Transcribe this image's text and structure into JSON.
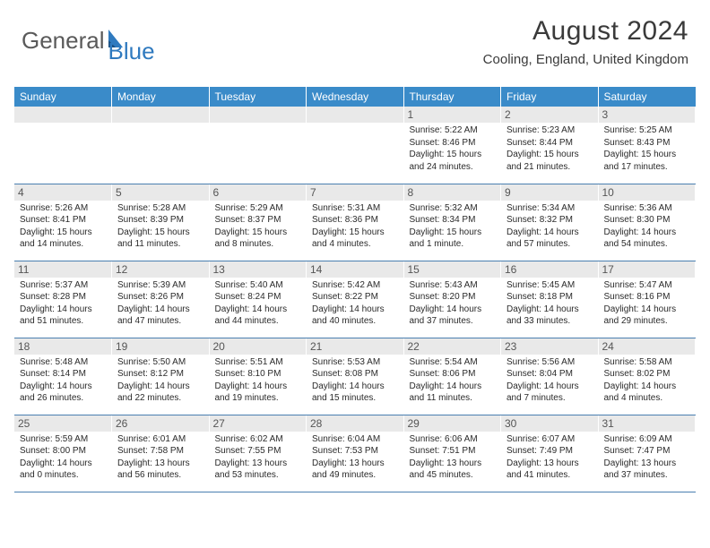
{
  "brand": {
    "name1": "General",
    "name2": "Blue"
  },
  "title": "August 2024",
  "location": "Cooling, England, United Kingdom",
  "weekdays": [
    "Sunday",
    "Monday",
    "Tuesday",
    "Wednesday",
    "Thursday",
    "Friday",
    "Saturday"
  ],
  "colors": {
    "header_bar": "#3a8bc9",
    "header_text": "#ffffff",
    "daynum_bg": "#e9e9e9",
    "row_divider": "#4a7fb0",
    "brand_blue": "#2f7abf",
    "brand_gray": "#5a5a5a"
  },
  "layout": {
    "cols": 7,
    "rows": 5,
    "first_day_col_index": 4
  },
  "days": [
    {
      "n": "1",
      "sr": "5:22 AM",
      "ss": "8:46 PM",
      "dl": "15 hours and 24 minutes."
    },
    {
      "n": "2",
      "sr": "5:23 AM",
      "ss": "8:44 PM",
      "dl": "15 hours and 21 minutes."
    },
    {
      "n": "3",
      "sr": "5:25 AM",
      "ss": "8:43 PM",
      "dl": "15 hours and 17 minutes."
    },
    {
      "n": "4",
      "sr": "5:26 AM",
      "ss": "8:41 PM",
      "dl": "15 hours and 14 minutes."
    },
    {
      "n": "5",
      "sr": "5:28 AM",
      "ss": "8:39 PM",
      "dl": "15 hours and 11 minutes."
    },
    {
      "n": "6",
      "sr": "5:29 AM",
      "ss": "8:37 PM",
      "dl": "15 hours and 8 minutes."
    },
    {
      "n": "7",
      "sr": "5:31 AM",
      "ss": "8:36 PM",
      "dl": "15 hours and 4 minutes."
    },
    {
      "n": "8",
      "sr": "5:32 AM",
      "ss": "8:34 PM",
      "dl": "15 hours and 1 minute."
    },
    {
      "n": "9",
      "sr": "5:34 AM",
      "ss": "8:32 PM",
      "dl": "14 hours and 57 minutes."
    },
    {
      "n": "10",
      "sr": "5:36 AM",
      "ss": "8:30 PM",
      "dl": "14 hours and 54 minutes."
    },
    {
      "n": "11",
      "sr": "5:37 AM",
      "ss": "8:28 PM",
      "dl": "14 hours and 51 minutes."
    },
    {
      "n": "12",
      "sr": "5:39 AM",
      "ss": "8:26 PM",
      "dl": "14 hours and 47 minutes."
    },
    {
      "n": "13",
      "sr": "5:40 AM",
      "ss": "8:24 PM",
      "dl": "14 hours and 44 minutes."
    },
    {
      "n": "14",
      "sr": "5:42 AM",
      "ss": "8:22 PM",
      "dl": "14 hours and 40 minutes."
    },
    {
      "n": "15",
      "sr": "5:43 AM",
      "ss": "8:20 PM",
      "dl": "14 hours and 37 minutes."
    },
    {
      "n": "16",
      "sr": "5:45 AM",
      "ss": "8:18 PM",
      "dl": "14 hours and 33 minutes."
    },
    {
      "n": "17",
      "sr": "5:47 AM",
      "ss": "8:16 PM",
      "dl": "14 hours and 29 minutes."
    },
    {
      "n": "18",
      "sr": "5:48 AM",
      "ss": "8:14 PM",
      "dl": "14 hours and 26 minutes."
    },
    {
      "n": "19",
      "sr": "5:50 AM",
      "ss": "8:12 PM",
      "dl": "14 hours and 22 minutes."
    },
    {
      "n": "20",
      "sr": "5:51 AM",
      "ss": "8:10 PM",
      "dl": "14 hours and 19 minutes."
    },
    {
      "n": "21",
      "sr": "5:53 AM",
      "ss": "8:08 PM",
      "dl": "14 hours and 15 minutes."
    },
    {
      "n": "22",
      "sr": "5:54 AM",
      "ss": "8:06 PM",
      "dl": "14 hours and 11 minutes."
    },
    {
      "n": "23",
      "sr": "5:56 AM",
      "ss": "8:04 PM",
      "dl": "14 hours and 7 minutes."
    },
    {
      "n": "24",
      "sr": "5:58 AM",
      "ss": "8:02 PM",
      "dl": "14 hours and 4 minutes."
    },
    {
      "n": "25",
      "sr": "5:59 AM",
      "ss": "8:00 PM",
      "dl": "14 hours and 0 minutes."
    },
    {
      "n": "26",
      "sr": "6:01 AM",
      "ss": "7:58 PM",
      "dl": "13 hours and 56 minutes."
    },
    {
      "n": "27",
      "sr": "6:02 AM",
      "ss": "7:55 PM",
      "dl": "13 hours and 53 minutes."
    },
    {
      "n": "28",
      "sr": "6:04 AM",
      "ss": "7:53 PM",
      "dl": "13 hours and 49 minutes."
    },
    {
      "n": "29",
      "sr": "6:06 AM",
      "ss": "7:51 PM",
      "dl": "13 hours and 45 minutes."
    },
    {
      "n": "30",
      "sr": "6:07 AM",
      "ss": "7:49 PM",
      "dl": "13 hours and 41 minutes."
    },
    {
      "n": "31",
      "sr": "6:09 AM",
      "ss": "7:47 PM",
      "dl": "13 hours and 37 minutes."
    }
  ],
  "labels": {
    "sunrise": "Sunrise:",
    "sunset": "Sunset:",
    "daylight": "Daylight:"
  }
}
